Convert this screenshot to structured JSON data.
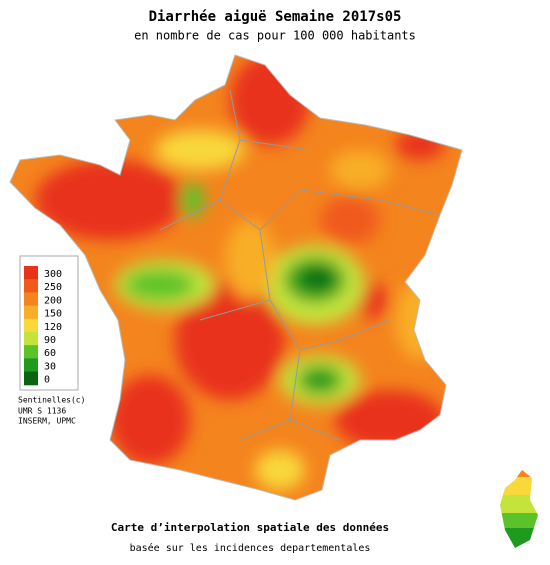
{
  "title": "Diarrhée aiguë Semaine 2017s05",
  "subtitle": "en nombre de cas pour 100 000 habitants",
  "legend": {
    "ticks": [
      300,
      250,
      200,
      150,
      120,
      90,
      60,
      30,
      0
    ],
    "colors": [
      "#e8331a",
      "#f05a1a",
      "#f4841e",
      "#f8ae28",
      "#f8d83a",
      "#c4e43c",
      "#5cc22a",
      "#1e9a1e",
      "#0a6410"
    ]
  },
  "credits": [
    "Sentinelles(c)",
    "UMR S 1136",
    "INSERM, UPMC"
  ],
  "footer": {
    "title": "Carte d’interpolation spatiale des données",
    "subtitle": "basée sur les incidences departementales"
  }
}
